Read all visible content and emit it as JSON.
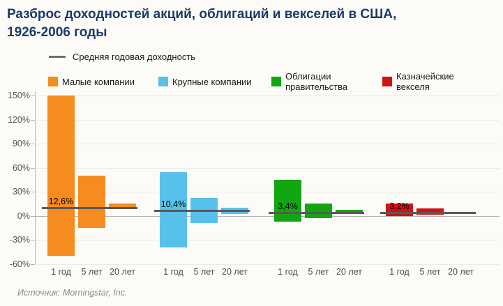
{
  "title": {
    "line1": "Разброс доходностей акций, облигаций и векселей в США,",
    "line2": "1926-2006 годы"
  },
  "legend": {
    "average_label": "Средняя годовая доходность",
    "average_line_color": "#6e6e6e",
    "items": [
      {
        "label": "Малые компании",
        "color": "#f68b1f"
      },
      {
        "label": "Крупные компании",
        "color": "#57c1ec"
      },
      {
        "label": "Облигации\nправительства",
        "color": "#12a712"
      },
      {
        "label": "Казначейские\nвекселя",
        "color": "#d01215"
      }
    ]
  },
  "source": "Источник: Morningstar, Inc.",
  "chart_data": {
    "type": "bar",
    "subtype": "floating-range-bars",
    "title": "Разброс доходностей акций, облигаций и векселей в США, 1926-2006 годы",
    "categories": [
      "1 год",
      "5 лет",
      "20 лет"
    ],
    "y_ticks": [
      150,
      120,
      90,
      60,
      30,
      0,
      -30,
      -60
    ],
    "ylim": [
      -60,
      150
    ],
    "y_unit": "%",
    "grid": true,
    "average_line_color": "#595959",
    "series": [
      {
        "name": "Малые компании",
        "color": "#f68b1f",
        "mean": 12.6,
        "mean_label": "12,6%",
        "line_value": 10,
        "ranges": [
          {
            "category": "1 год",
            "min": -50,
            "max": 150
          },
          {
            "category": "5 лет",
            "min": -15,
            "max": 50
          },
          {
            "category": "20 лет",
            "min": 8,
            "max": 15
          }
        ]
      },
      {
        "name": "Крупные компании",
        "color": "#57c1ec",
        "mean": 10.4,
        "mean_label": "10,4%",
        "line_value": 6.5,
        "ranges": [
          {
            "category": "1 год",
            "min": -40,
            "max": 54
          },
          {
            "category": "5 лет",
            "min": -9,
            "max": 22
          },
          {
            "category": "20 лет",
            "min": 2,
            "max": 10
          }
        ]
      },
      {
        "name": "Облигации правительства",
        "color": "#12a712",
        "mean": 3.4,
        "mean_label": "3,4%",
        "line_value": 4,
        "ranges": [
          {
            "category": "1 год",
            "min": -7,
            "max": 45
          },
          {
            "category": "5 лет",
            "min": -3,
            "max": 15
          },
          {
            "category": "20 лет",
            "min": 2,
            "max": 7
          }
        ]
      },
      {
        "name": "Казначейские векселя",
        "color": "#d01215",
        "mean": 3.2,
        "mean_label": "3,2%",
        "line_value": 3.5,
        "ranges": [
          {
            "category": "1 год",
            "min": 0,
            "max": 15
          },
          {
            "category": "5 лет",
            "min": 1,
            "max": 9
          },
          {
            "category": "20 лет",
            "min": 2,
            "max": 5
          }
        ]
      }
    ]
  }
}
